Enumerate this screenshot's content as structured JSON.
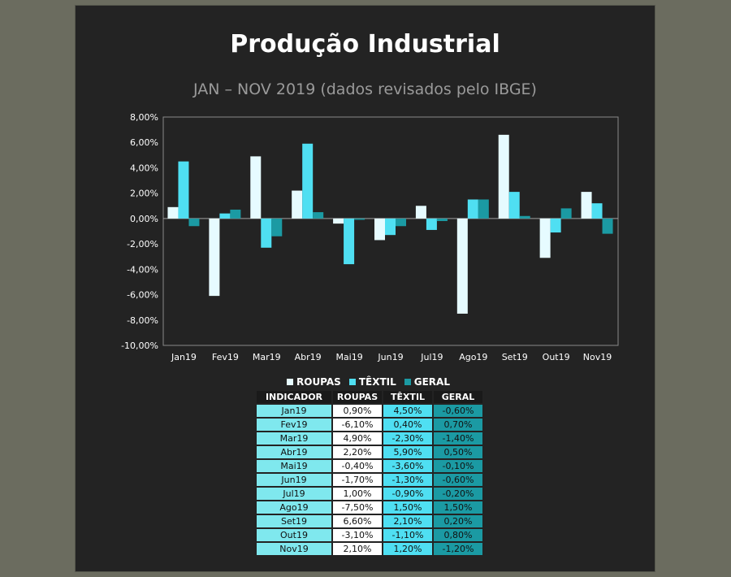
{
  "chart_data": {
    "type": "bar",
    "title": "Produção Industrial",
    "subtitle": "JAN – NOV 2019 (dados revisados pelo IBGE)",
    "categories": [
      "Jan19",
      "Fev19",
      "Mar19",
      "Abr19",
      "Mai19",
      "Jun19",
      "Jul19",
      "Ago19",
      "Set19",
      "Out19",
      "Nov19"
    ],
    "series": [
      {
        "name": "ROUPAS",
        "color": "#e6fbff",
        "values": [
          0.9,
          -6.1,
          4.9,
          2.2,
          -0.4,
          -1.7,
          1.0,
          -7.5,
          6.6,
          -3.1,
          2.1
        ]
      },
      {
        "name": "TÊXTIL",
        "color": "#4fdff2",
        "values": [
          4.5,
          0.4,
          -2.3,
          5.9,
          -3.6,
          -1.3,
          -0.9,
          1.5,
          2.1,
          -1.1,
          1.2
        ]
      },
      {
        "name": "GERAL",
        "color": "#1b9aa3",
        "values": [
          -0.6,
          0.7,
          -1.4,
          0.5,
          -0.1,
          -0.6,
          -0.2,
          1.5,
          0.2,
          0.8,
          -1.2
        ]
      }
    ],
    "ylim": [
      -10,
      8
    ],
    "yticks": [
      "8,00%",
      "6,00%",
      "4,00%",
      "2,00%",
      "0,00%",
      "-2,00%",
      "-4,00%",
      "-6,00%",
      "-8,00%",
      "-10,00%"
    ],
    "grid": false,
    "legend_position": "bottom"
  },
  "table": {
    "headers": [
      "INDICADOR",
      "ROUPAS",
      "TÊXTIL",
      "GERAL"
    ],
    "rows": [
      [
        "Jan19",
        "0,90%",
        "4,50%",
        "-0,60%"
      ],
      [
        "Fev19",
        "-6,10%",
        "0,40%",
        "0,70%"
      ],
      [
        "Mar19",
        "4,90%",
        "-2,30%",
        "-1,40%"
      ],
      [
        "Abr19",
        "2,20%",
        "5,90%",
        "0,50%"
      ],
      [
        "Mai19",
        "-0,40%",
        "-3,60%",
        "-0,10%"
      ],
      [
        "Jun19",
        "-1,70%",
        "-1,30%",
        "-0,60%"
      ],
      [
        "Jul19",
        "1,00%",
        "-0,90%",
        "-0,20%"
      ],
      [
        "Ago19",
        "-7,50%",
        "1,50%",
        "1,50%"
      ],
      [
        "Set19",
        "6,60%",
        "2,10%",
        "0,20%"
      ],
      [
        "Out19",
        "-3,10%",
        "-1,10%",
        "0,80%"
      ],
      [
        "Nov19",
        "2,10%",
        "1,20%",
        "-1,20%"
      ]
    ]
  }
}
